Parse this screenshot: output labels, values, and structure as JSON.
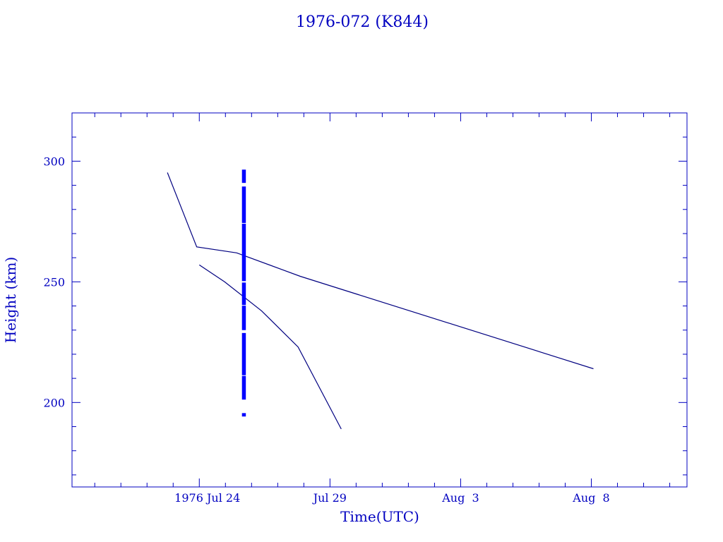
{
  "chart_data": {
    "type": "line",
    "title": "1976-072 (K844)",
    "xlabel": "Time(UTC)",
    "ylabel": "Height (km)",
    "x_units": "days since 1976 Jul 24 00:00 UTC",
    "xlim": [
      -4.87,
      18.66
    ],
    "ylim": [
      165,
      320
    ],
    "xticks": [
      {
        "value": 0,
        "label": "1976 Jul 24"
      },
      {
        "value": 5,
        "label": "Jul 29"
      },
      {
        "value": 10,
        "label": "Aug  3"
      },
      {
        "value": 15,
        "label": "Aug  8"
      }
    ],
    "yticks": [
      {
        "value": 200,
        "label": "200"
      },
      {
        "value": 250,
        "label": "250"
      },
      {
        "value": 300,
        "label": "300"
      }
    ],
    "grid": false,
    "series": [
      {
        "name": "line-1",
        "x": [
          -1.22,
          -0.1,
          1.43,
          3.86,
          15.08
        ],
        "y": [
          295.3,
          264.5,
          262.0,
          252.3,
          214.0
        ]
      },
      {
        "name": "line-2",
        "x": [
          0,
          0.97,
          2.38,
          3.78,
          5.43
        ],
        "y": [
          257.0,
          250.0,
          238.0,
          223.0,
          189.0
        ]
      }
    ],
    "band": {
      "name": "observations",
      "x": 1.7,
      "ranges": [
        [
          291,
          296.5
        ],
        [
          274.4,
          289.5
        ],
        [
          250.3,
          274.1
        ],
        [
          240.4,
          249.7
        ],
        [
          230,
          240.1
        ],
        [
          211.3,
          228.8
        ],
        [
          201.2,
          211
        ],
        [
          194.2,
          195.6
        ]
      ]
    },
    "colors": {
      "axis": "#0000c0",
      "line": "#000080",
      "band": "#0000ff"
    }
  }
}
